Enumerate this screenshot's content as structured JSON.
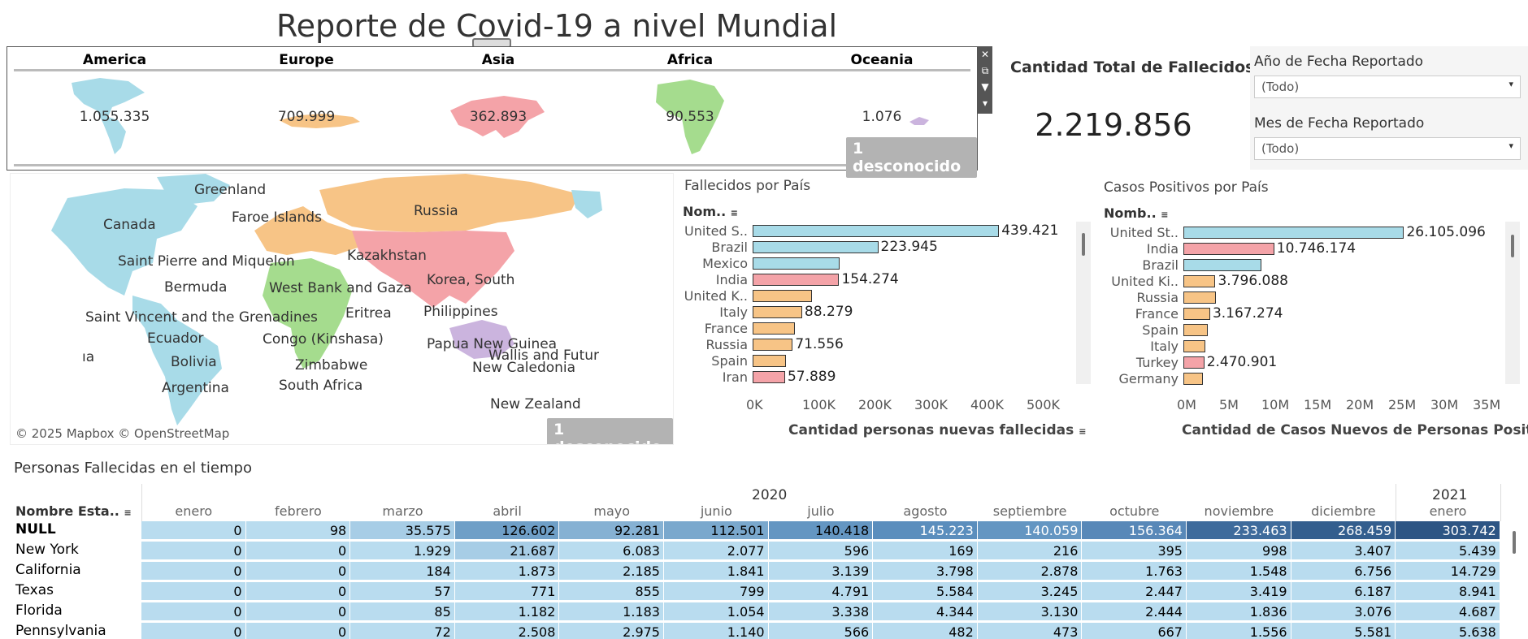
{
  "title": "Reporte de Covid-19 a nivel Mundial",
  "continents": [
    {
      "name": "America",
      "value": "1.055.335",
      "color": "#a8dbe8"
    },
    {
      "name": "Europe",
      "value": "709.999",
      "color": "#f7c486"
    },
    {
      "name": "Asia",
      "value": "362.893",
      "color": "#f4a3a8"
    },
    {
      "name": "Africa",
      "value": "90.553",
      "color": "#a5dc8e"
    },
    {
      "name": "Oceania",
      "value": "1.076",
      "color": "#cbb4de"
    }
  ],
  "unknown_badge": "1 desconocido",
  "total": {
    "label": "Cantidad Total de Fallecidos",
    "value": "2.219.856"
  },
  "filters": [
    {
      "label": "Año de Fecha Reportado",
      "value": "(Todo)"
    },
    {
      "label": "Mes de Fecha Reportado",
      "value": "(Todo)"
    }
  ],
  "map": {
    "attribution": "© 2025 Mapbox © OpenStreetMap",
    "labels": [
      "Greenland",
      "Faroe Islands",
      "Russia",
      "Canada",
      "Kazakhstan",
      "Saint Pierre and Miquelon",
      "Korea, South",
      "Bermuda",
      "West Bank and Gaza",
      "Eritrea",
      "Philippines",
      "Saint Vincent and the Grenadines",
      "Ecuador",
      "Congo (Kinshasa)",
      "Papua New Guinea",
      "Wallis and Futur",
      "ıa",
      "Bolivia",
      "Zimbabwe",
      "New Caledonia",
      "Argentina",
      "South Africa",
      "New Zealand"
    ]
  },
  "deaths_chart": {
    "title": "Fallecidos por País",
    "header": "Nom..",
    "axis_title": "Cantidad personas nuevas fallecidas",
    "ticks": [
      "0K",
      "100K",
      "200K",
      "300K",
      "400K",
      "500K"
    ],
    "max": 500000,
    "rows": [
      {
        "label": "United S..",
        "value": 439421,
        "text": "439.421",
        "color": "#a8dbe8"
      },
      {
        "label": "Brazil",
        "value": 223945,
        "text": "223.945",
        "color": "#a8dbe8"
      },
      {
        "label": "Mexico",
        "value": 155000,
        "text": "",
        "color": "#a8dbe8"
      },
      {
        "label": "India",
        "value": 154274,
        "text": "154.274",
        "color": "#f4a3a8"
      },
      {
        "label": "United K..",
        "value": 106000,
        "text": "",
        "color": "#f7c486"
      },
      {
        "label": "Italy",
        "value": 88279,
        "text": "88.279",
        "color": "#f7c486"
      },
      {
        "label": "France",
        "value": 76000,
        "text": "",
        "color": "#f7c486"
      },
      {
        "label": "Russia",
        "value": 71556,
        "text": "71.556",
        "color": "#f7c486"
      },
      {
        "label": "Spain",
        "value": 60000,
        "text": "",
        "color": "#f7c486"
      },
      {
        "label": "Iran",
        "value": 57889,
        "text": "57.889",
        "color": "#f4a3a8"
      }
    ]
  },
  "cases_chart": {
    "title": "Casos Positivos por País",
    "header": "Nomb..",
    "axis_title": "Cantidad de Casos Nuevos de Personas Positi..",
    "ticks": [
      "0M",
      "5M",
      "10M",
      "15M",
      "20M",
      "25M",
      "30M",
      "35M"
    ],
    "max": 35000000,
    "rows": [
      {
        "label": "United St..",
        "value": 26105096,
        "text": "26.105.096",
        "color": "#a8dbe8"
      },
      {
        "label": "India",
        "value": 10746174,
        "text": "10.746.174",
        "color": "#f4a3a8"
      },
      {
        "label": "Brazil",
        "value": 9200000,
        "text": "",
        "color": "#a8dbe8"
      },
      {
        "label": "United Ki..",
        "value": 3796088,
        "text": "3.796.088",
        "color": "#f7c486"
      },
      {
        "label": "Russia",
        "value": 3800000,
        "text": "",
        "color": "#f7c486"
      },
      {
        "label": "France",
        "value": 3167274,
        "text": "3.167.274",
        "color": "#f7c486"
      },
      {
        "label": "Spain",
        "value": 2900000,
        "text": "",
        "color": "#f7c486"
      },
      {
        "label": "Italy",
        "value": 2600000,
        "text": "",
        "color": "#f7c486"
      },
      {
        "label": "Turkey",
        "value": 2470901,
        "text": "2.470.901",
        "color": "#f4a3a8"
      },
      {
        "label": "Germany",
        "value": 2300000,
        "text": "",
        "color": "#f7c486"
      }
    ]
  },
  "time_table": {
    "title": "Personas Fallecidas en el tiempo",
    "row_header": "Nombre Esta..",
    "years": [
      "2020",
      "2021"
    ],
    "months": [
      "enero",
      "febrero",
      "marzo",
      "abril",
      "mayo",
      "junio",
      "julio",
      "agosto",
      "septiembre",
      "octubre",
      "noviembre",
      "diciembre",
      "enero"
    ],
    "rows": [
      {
        "name": "NULL",
        "cells": [
          "0",
          "98",
          "35.575",
          "126.602",
          "92.281",
          "112.501",
          "140.418",
          "145.223",
          "140.059",
          "156.364",
          "233.463",
          "268.459",
          "303.742"
        ]
      },
      {
        "name": "New York",
        "cells": [
          "0",
          "0",
          "1.929",
          "21.687",
          "6.083",
          "2.077",
          "596",
          "169",
          "216",
          "395",
          "998",
          "3.407",
          "5.439"
        ]
      },
      {
        "name": "California",
        "cells": [
          "0",
          "0",
          "184",
          "1.873",
          "2.185",
          "1.841",
          "3.139",
          "3.798",
          "2.878",
          "1.763",
          "1.548",
          "6.756",
          "14.729"
        ]
      },
      {
        "name": "Texas",
        "cells": [
          "0",
          "0",
          "57",
          "771",
          "855",
          "799",
          "4.791",
          "5.584",
          "3.245",
          "2.447",
          "3.419",
          "6.187",
          "8.941"
        ]
      },
      {
        "name": "Florida",
        "cells": [
          "0",
          "0",
          "85",
          "1.182",
          "1.183",
          "1.054",
          "3.338",
          "4.344",
          "3.130",
          "2.444",
          "1.836",
          "3.076",
          "4.687"
        ]
      },
      {
        "name": "Pennsylvania",
        "cells": [
          "0",
          "0",
          "72",
          "2.508",
          "2.975",
          "1.140",
          "566",
          "482",
          "473",
          "667",
          "1.556",
          "5.581",
          "5.638"
        ]
      }
    ],
    "null_row_colors": [
      "#b9dcef",
      "#b9dcef",
      "#a7cde6",
      "#6f9fc7",
      "#86b1d3",
      "#7aa8cd",
      "#6496c2",
      "#5b8ebd",
      "#6496c2",
      "#5888b8",
      "#3e6b9c",
      "#335e8e",
      "#2d5584"
    ]
  }
}
